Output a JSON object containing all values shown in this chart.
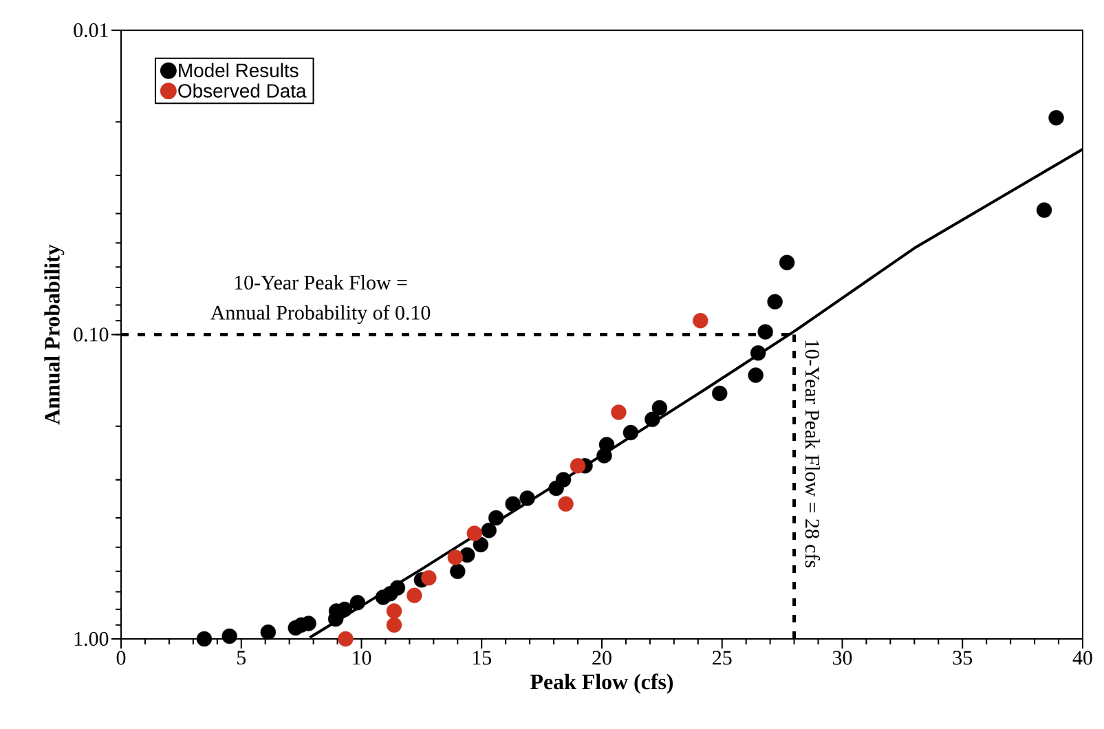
{
  "chart_data": {
    "type": "scatter",
    "xlabel": "Peak Flow (cfs)",
    "ylabel": "Annual Probability",
    "xlim": [
      0,
      40
    ],
    "xticks": [
      0,
      5,
      10,
      15,
      20,
      25,
      30,
      35,
      40
    ],
    "ylim": [
      1,
      0.01
    ],
    "yticks": [
      {
        "value": 0.01,
        "label": "0.01"
      },
      {
        "value": 0.1,
        "label": "0.10"
      },
      {
        "value": 1,
        "label": "1.00"
      }
    ],
    "log": "y",
    "legend": "top left",
    "grid": false,
    "series": [
      {
        "name": "Model Results",
        "color": "#000000",
        "marker": "circle",
        "x": [
          3.46,
          4.51,
          6.12,
          7.26,
          7.5,
          7.8,
          8.93,
          8.96,
          9.3,
          9.84,
          10.9,
          11.2,
          11.5,
          12.5,
          14.0,
          14.4,
          14.96,
          15.3,
          15.6,
          16.3,
          16.9,
          18.1,
          18.4,
          19.3,
          20.1,
          20.2,
          21.2,
          22.1,
          22.4,
          24.9,
          26.4,
          26.5,
          26.8,
          27.2,
          27.7,
          38.4,
          38.9
        ],
        "values": [
          1.0,
          0.98,
          0.95,
          0.92,
          0.9,
          0.89,
          0.86,
          0.81,
          0.8,
          0.76,
          0.73,
          0.71,
          0.68,
          0.64,
          0.6,
          0.53,
          0.49,
          0.44,
          0.4,
          0.36,
          0.345,
          0.32,
          0.3,
          0.27,
          0.25,
          0.23,
          0.21,
          0.19,
          0.174,
          0.156,
          0.136,
          0.115,
          0.098,
          0.078,
          0.058,
          0.039,
          0.0194
        ]
      },
      {
        "name": "Observed Data",
        "color": "#d03420",
        "marker": "circle",
        "x": [
          9.34,
          11.36,
          11.36,
          12.2,
          12.8,
          13.9,
          14.7,
          18.5,
          19.0,
          20.7,
          24.1
        ],
        "values": [
          1.0,
          0.9,
          0.81,
          0.72,
          0.63,
          0.54,
          0.45,
          0.36,
          0.27,
          0.18,
          0.09
        ]
      },
      {
        "type": "line",
        "color": "#000000",
        "line_style": "solid",
        "marker": "none",
        "x": [
          7.85,
          12.5,
          18.4,
          24.2,
          28.05,
          33.0,
          40
        ],
        "values": [
          0.99,
          0.59,
          0.3,
          0.153,
          0.097,
          0.052,
          0.0246
        ]
      }
    ],
    "ref_lines": [
      {
        "axis": "y",
        "value": 0.1,
        "color": "#000000",
        "line_style": "dashed"
      },
      {
        "axis": "x",
        "value": 28,
        "label": "10-Year Peak Flow = 28 cfs",
        "color": "#000000",
        "line_style": "dashed"
      }
    ],
    "annotations": [
      "10-Year Peak Flow =",
      "Annual Probability of 0.10"
    ]
  }
}
